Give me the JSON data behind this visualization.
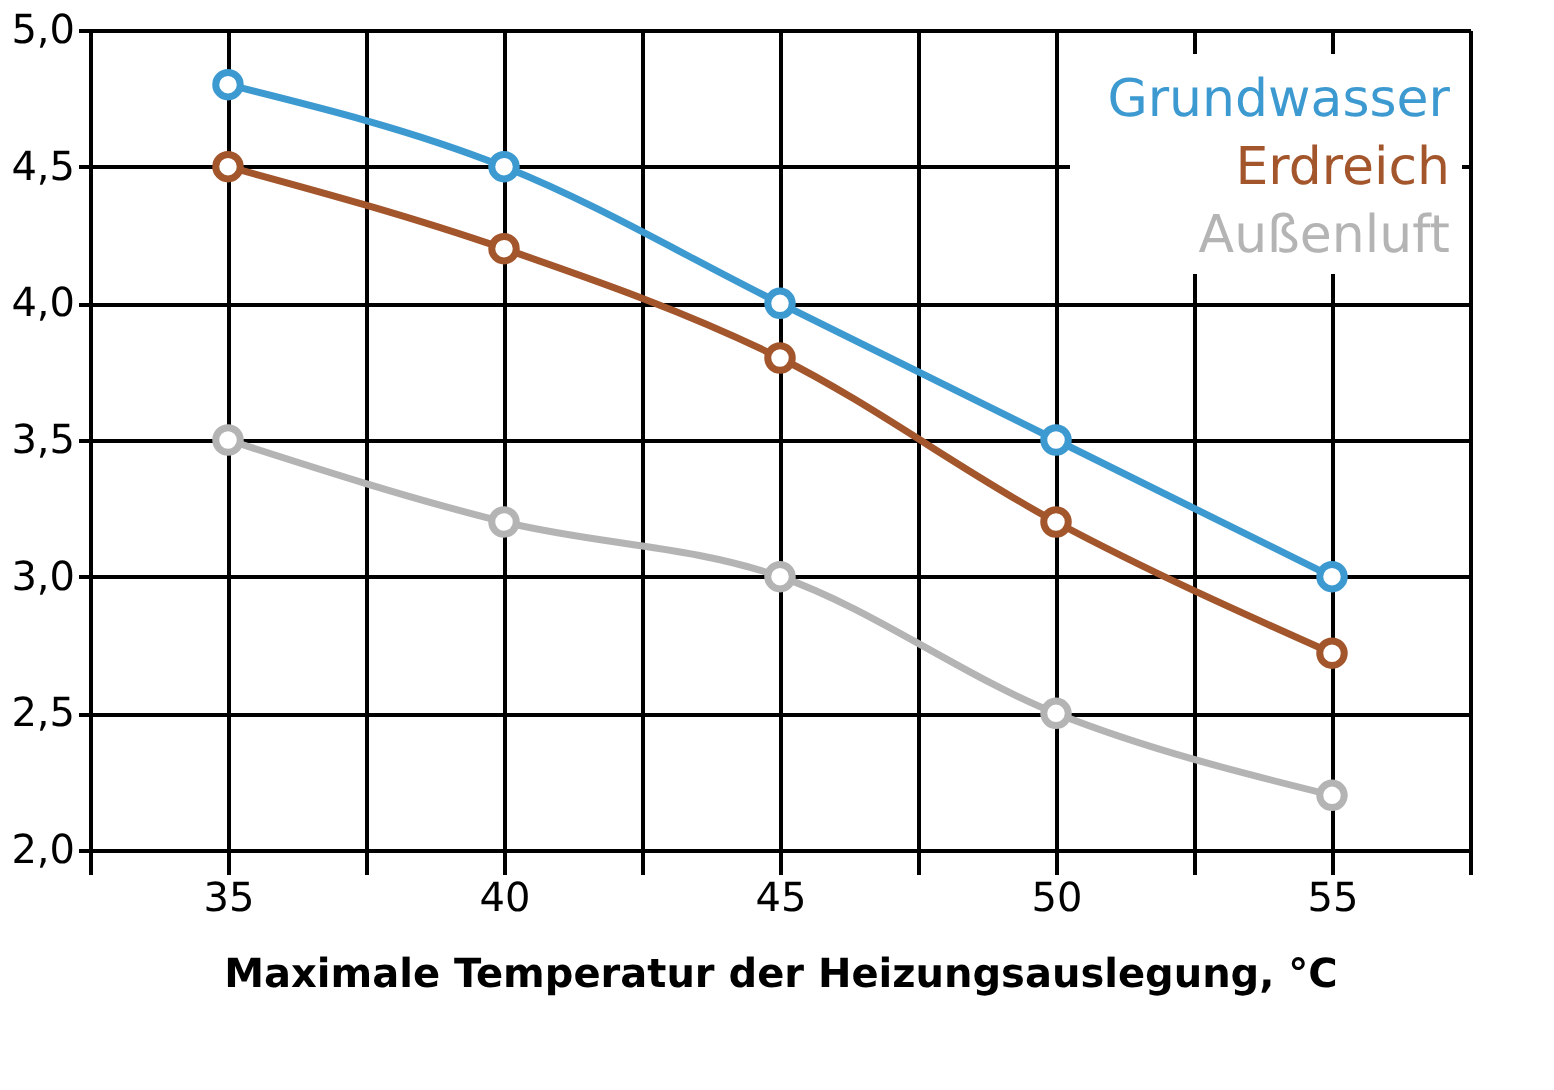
{
  "chart_data": {
    "type": "line",
    "xlabel": "Maximale Temperatur der Heizungsauslegung, °C",
    "x": [
      35,
      40,
      45,
      50,
      55
    ],
    "series": [
      {
        "name": "Grundwasser",
        "color": "#3d9ad1",
        "values": [
          4.8,
          4.5,
          4.0,
          3.5,
          3.0
        ]
      },
      {
        "name": "Erdreich",
        "color": "#a3552b",
        "values": [
          4.5,
          4.2,
          3.8,
          3.2,
          2.72
        ]
      },
      {
        "name": "Außenluft",
        "color": "#b4b4b4",
        "values": [
          3.5,
          3.2,
          3.0,
          2.5,
          2.2
        ]
      }
    ],
    "xlim": [
      32.5,
      57.5
    ],
    "xticks": [
      {
        "value": 32.5,
        "label": null
      },
      35,
      {
        "value": 37.5,
        "label": null
      },
      40,
      {
        "value": 42.5,
        "label": null
      },
      45,
      {
        "value": 47.5,
        "label": null
      },
      50,
      {
        "value": 52.5,
        "label": null
      },
      55,
      {
        "value": 57.5,
        "label": null
      }
    ],
    "ylim": [
      2,
      5
    ],
    "yticks": [
      {
        "value": 2,
        "label": "2,0"
      },
      {
        "value": 2.5,
        "label": "2,5"
      },
      {
        "value": 3,
        "label": "3,0"
      },
      {
        "value": 3.5,
        "label": "3,5"
      },
      {
        "value": 4,
        "label": "4,0"
      },
      {
        "value": 4.5,
        "label": "4,5"
      },
      {
        "value": 5,
        "label": "5,0"
      }
    ],
    "grid": true,
    "legend": "top right",
    "marker": "circle",
    "line_style": "solid"
  }
}
